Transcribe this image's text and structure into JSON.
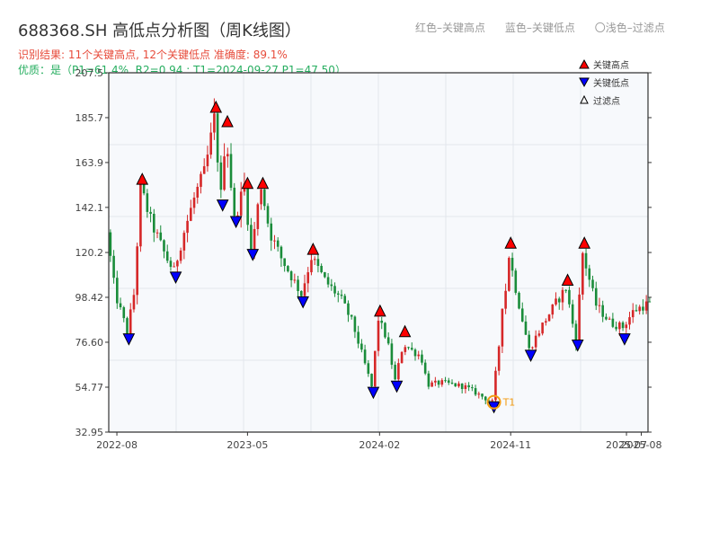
{
  "title": "688368.SH 高低点分析图（周K线图）",
  "top_legend": {
    "red": "红色–关键高点",
    "blue": "蓝色–关键低点",
    "light": "〇浅色–过滤点"
  },
  "status_line": "识别结果: 11个关键高点, 12个关键低点  准确度: 89.1%",
  "quality_line": "优质：是（P1=61.4%, R2=0.94 ; T1=2024-09-27 P1=47.50）",
  "colors": {
    "up": "#d62728",
    "down": "#1a8c3a",
    "high_marker": "#ff0000",
    "low_marker": "#0000ff",
    "t1_ring": "#f39c12"
  },
  "chart_data": {
    "type": "candlestick",
    "title": "688368.SH 高低点分析图（周K线图）",
    "xlim": [
      "2022-07-15",
      "2025-08-15"
    ],
    "ylim": [
      32.95,
      207.5
    ],
    "yticks": [
      32.95,
      54.77,
      76.6,
      98.42,
      120.2,
      142.1,
      163.9,
      185.7,
      207.5
    ],
    "ytick_labels": [
      "32.95",
      "54.77",
      "76.60",
      "98.42",
      "120.2",
      "142.1",
      "163.9",
      "185.7",
      "207.5"
    ],
    "xticks": [
      "2022-08-01",
      "2023-05-01",
      "2024-02-01",
      "2024-11-01",
      "2025-07-01",
      "2025-08-01"
    ],
    "xtick_labels": [
      "2022-08",
      "2023-05",
      "2024-02",
      "2024-11",
      "2025-07",
      "2025-08"
    ],
    "legend": {
      "placement": "top-right",
      "entries": [
        "关键高点",
        "关键低点",
        "过滤点"
      ]
    },
    "price_path": [
      [
        "2022-07-15",
        130
      ],
      [
        "2022-08-01",
        100
      ],
      [
        "2022-08-26",
        82
      ],
      [
        "2022-09-10",
        101
      ],
      [
        "2022-09-23",
        152
      ],
      [
        "2022-10-15",
        135
      ],
      [
        "2022-11-15",
        118
      ],
      [
        "2022-12-02",
        111
      ],
      [
        "2022-12-20",
        128
      ],
      [
        "2023-01-15",
        148
      ],
      [
        "2023-02-05",
        160
      ],
      [
        "2023-02-24",
        185
      ],
      [
        "2023-03-10",
        148
      ],
      [
        "2023-03-20",
        180
      ],
      [
        "2023-04-07",
        136
      ],
      [
        "2023-04-28",
        153
      ],
      [
        "2023-05-12",
        121
      ],
      [
        "2023-06-02",
        153
      ],
      [
        "2023-06-20",
        130
      ],
      [
        "2023-07-15",
        117
      ],
      [
        "2023-08-01",
        110
      ],
      [
        "2023-08-25",
        100
      ],
      [
        "2023-09-15",
        118
      ],
      [
        "2023-10-15",
        106
      ],
      [
        "2023-11-15",
        98
      ],
      [
        "2023-12-10",
        86
      ],
      [
        "2024-01-19",
        55
      ],
      [
        "2024-02-02",
        88
      ],
      [
        "2024-02-20",
        78
      ],
      [
        "2024-03-08",
        58
      ],
      [
        "2024-03-25",
        76
      ],
      [
        "2024-04-15",
        72
      ],
      [
        "2024-05-01",
        70
      ],
      [
        "2024-05-15",
        56
      ],
      [
        "2024-06-15",
        57
      ],
      [
        "2024-08-01",
        55
      ],
      [
        "2024-09-27",
        47.5
      ],
      [
        "2024-10-11",
        75
      ],
      [
        "2024-10-18",
        95
      ],
      [
        "2024-10-25",
        102
      ],
      [
        "2024-11-01",
        119
      ],
      [
        "2024-11-20",
        97
      ],
      [
        "2024-12-13",
        73
      ],
      [
        "2025-01-10",
        85
      ],
      [
        "2025-02-05",
        95
      ],
      [
        "2025-02-28",
        103
      ],
      [
        "2025-03-21",
        77
      ],
      [
        "2025-04-04",
        120
      ],
      [
        "2025-05-01",
        95
      ],
      [
        "2025-06-01",
        86
      ],
      [
        "2025-06-27",
        84
      ],
      [
        "2025-07-20",
        92
      ],
      [
        "2025-08-15",
        95
      ]
    ],
    "key_highs": [
      {
        "date": "2022-09-23",
        "price": 152
      },
      {
        "date": "2023-02-24",
        "price": 187
      },
      {
        "date": "2023-03-20",
        "price": 180
      },
      {
        "date": "2023-05-01",
        "price": 150
      },
      {
        "date": "2023-06-02",
        "price": 150
      },
      {
        "date": "2023-09-15",
        "price": 118
      },
      {
        "date": "2024-02-02",
        "price": 88
      },
      {
        "date": "2024-03-25",
        "price": 78
      },
      {
        "date": "2024-11-01",
        "price": 121
      },
      {
        "date": "2025-02-28",
        "price": 103
      },
      {
        "date": "2025-04-04",
        "price": 121
      }
    ],
    "key_lows": [
      {
        "date": "2022-08-26",
        "price": 82
      },
      {
        "date": "2022-12-02",
        "price": 112
      },
      {
        "date": "2023-03-10",
        "price": 147
      },
      {
        "date": "2023-04-07",
        "price": 139
      },
      {
        "date": "2023-05-12",
        "price": 123
      },
      {
        "date": "2023-08-25",
        "price": 100
      },
      {
        "date": "2024-01-19",
        "price": 56
      },
      {
        "date": "2024-03-08",
        "price": 59
      },
      {
        "date": "2024-09-27",
        "price": 49
      },
      {
        "date": "2024-12-13",
        "price": 74
      },
      {
        "date": "2025-03-21",
        "price": 79
      },
      {
        "date": "2025-06-27",
        "price": 82
      }
    ],
    "annotation": {
      "label": "T1",
      "date": "2024-09-27",
      "price": 47.5
    }
  }
}
